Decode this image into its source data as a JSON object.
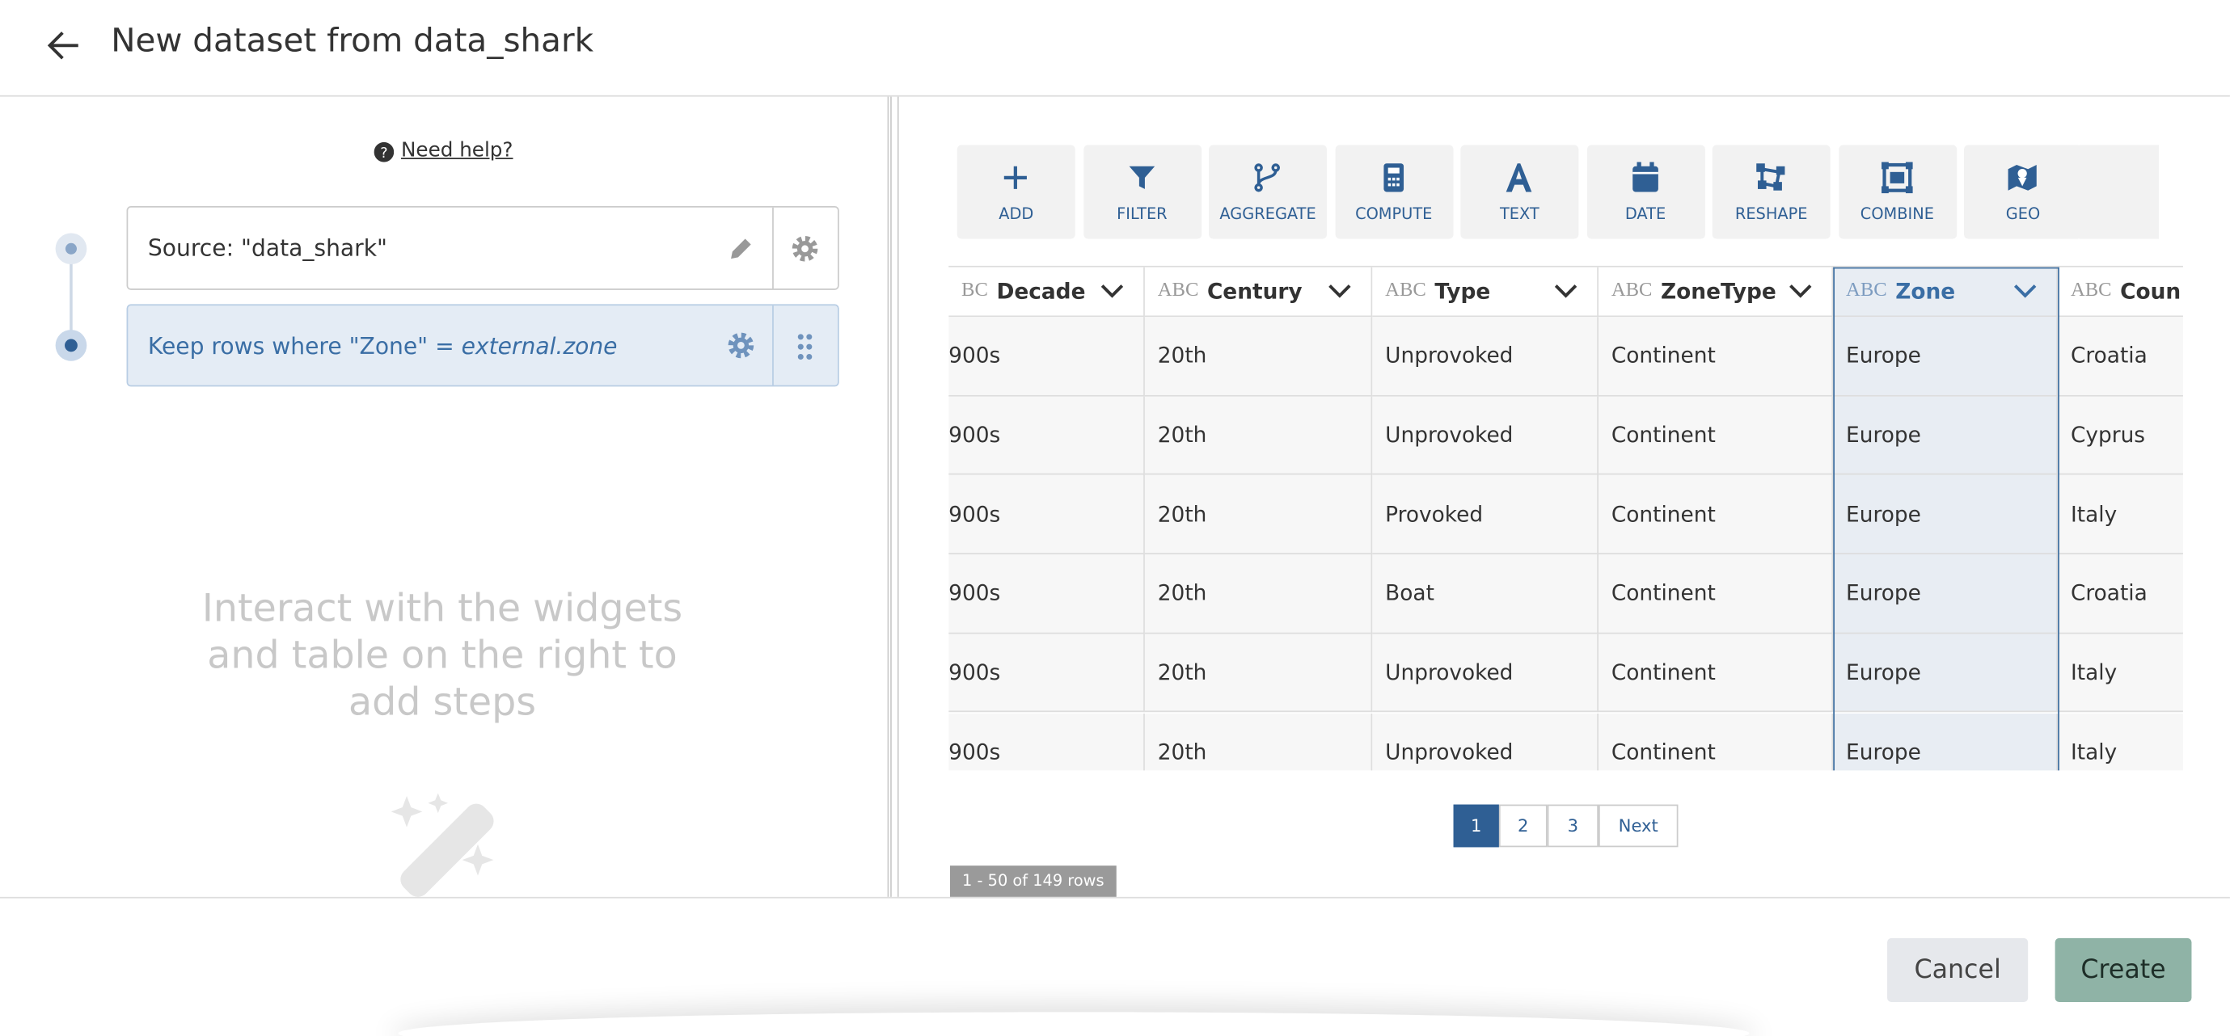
{
  "header": {
    "title": "New dataset from data_shark"
  },
  "help": {
    "label": "Need help?"
  },
  "steps": [
    {
      "label": "Source: \"data_shark\""
    },
    {
      "label": "Keep rows where \"Zone\" = ",
      "value": "external.zone"
    }
  ],
  "placeholder": {
    "lines": [
      "Interact with the widgets",
      "and table on the right to",
      "add steps"
    ]
  },
  "toolbar": {
    "buttons": [
      "ADD",
      "FILTER",
      "AGGREGATE",
      "COMPUTE",
      "TEXT",
      "DATE",
      "RESHAPE",
      "COMBINE",
      "GEO"
    ]
  },
  "table": {
    "columns": [
      {
        "type": "BC",
        "name": "Decade"
      },
      {
        "type": "ABC",
        "name": "Century"
      },
      {
        "type": "ABC",
        "name": "Type"
      },
      {
        "type": "ABC",
        "name": "ZoneType"
      },
      {
        "type": "ABC",
        "name": "Zone"
      },
      {
        "type": "ABC",
        "name": "Coun"
      }
    ],
    "rows": [
      [
        "900s",
        "20th",
        "Unprovoked",
        "Continent",
        "Europe",
        "Croatia"
      ],
      [
        "900s",
        "20th",
        "Unprovoked",
        "Continent",
        "Europe",
        "Cyprus"
      ],
      [
        "900s",
        "20th",
        "Provoked",
        "Continent",
        "Europe",
        "Italy"
      ],
      [
        "900s",
        "20th",
        "Boat",
        "Continent",
        "Europe",
        "Croatia"
      ],
      [
        "900s",
        "20th",
        "Unprovoked",
        "Continent",
        "Europe",
        "Italy"
      ],
      [
        "900s",
        "20th",
        "Unprovoked",
        "Continent",
        "Europe",
        "Italy"
      ]
    ]
  },
  "pagination": {
    "pages": [
      "1",
      "2",
      "3"
    ],
    "next": "Next"
  },
  "row_count": "1 - 50 of 149 rows",
  "footer": {
    "cancel": "Cancel",
    "create": "Create"
  }
}
